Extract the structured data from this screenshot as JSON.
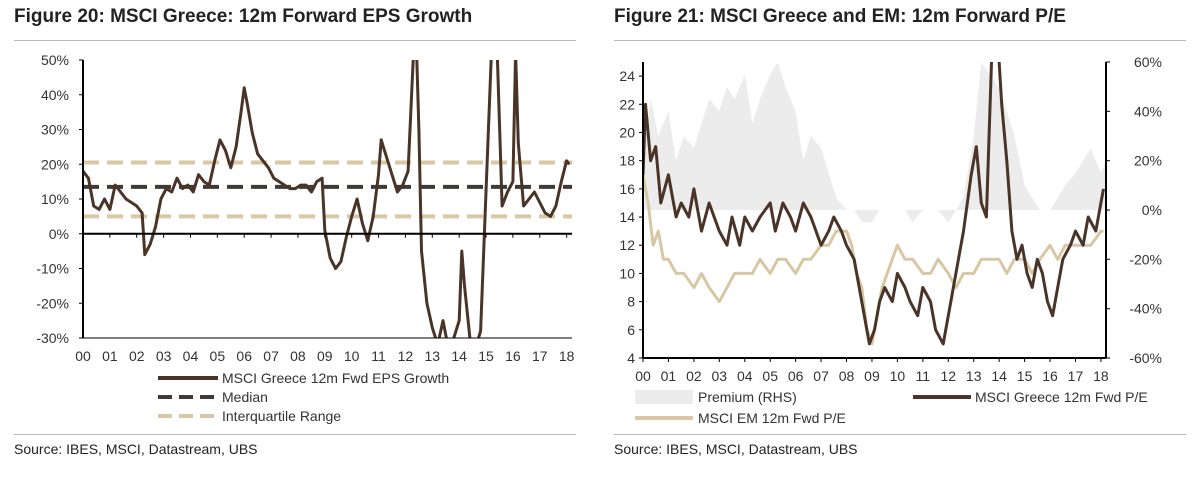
{
  "charts": [
    {
      "title": "Figure 20: MSCI Greece: 12m Forward EPS Growth",
      "source": "Source:  IBES, MSCI, Datastream, UBS"
    },
    {
      "title": "Figure 21: MSCI Greece and EM: 12m Forward P/E",
      "source": "Source:  IBES, MSCI, Datastream, UBS"
    }
  ],
  "colors": {
    "greece": "#4a3428",
    "band": "#d9c8a6",
    "em": "#d7c7a4",
    "premium": "#ececec",
    "axis": "#000000",
    "grid": "#c8c8c8"
  },
  "chart_data": [
    {
      "type": "line",
      "title": "Figure 20: MSCI Greece: 12m Forward EPS Growth",
      "xlabel": "",
      "ylabel": "",
      "x_ticks": [
        "00",
        "01",
        "02",
        "03",
        "04",
        "05",
        "06",
        "07",
        "08",
        "09",
        "10",
        "11",
        "12",
        "13",
        "14",
        "15",
        "16",
        "17",
        "18"
      ],
      "y_ticks": [
        "50%",
        "40%",
        "30%",
        "20%",
        "10%",
        "0%",
        "-10%",
        "-20%",
        "-30%"
      ],
      "ylim": [
        -30,
        50
      ],
      "xlim": [
        0,
        18.2
      ],
      "series": [
        {
          "name": "MSCI Greece 12m Fwd EPS Growth",
          "x": [
            0,
            0.2,
            0.4,
            0.6,
            0.8,
            1.0,
            1.2,
            1.4,
            1.6,
            1.8,
            2.0,
            2.2,
            2.3,
            2.5,
            2.7,
            2.9,
            3.1,
            3.3,
            3.5,
            3.7,
            3.9,
            4.1,
            4.3,
            4.5,
            4.7,
            4.9,
            5.1,
            5.3,
            5.5,
            5.7,
            5.9,
            6.0,
            6.1,
            6.3,
            6.5,
            6.7,
            6.9,
            7.1,
            7.3,
            7.5,
            7.7,
            7.9,
            8.1,
            8.3,
            8.5,
            8.7,
            8.9,
            9.0,
            9.2,
            9.4,
            9.6,
            9.8,
            10.0,
            10.2,
            10.4,
            10.6,
            10.8,
            11.0,
            11.1,
            11.3,
            11.5,
            11.7,
            11.9,
            12.1,
            12.3,
            12.4,
            12.5,
            12.6,
            12.8,
            13.0,
            13.2,
            13.4,
            13.6,
            13.8,
            14.0,
            14.1,
            14.2,
            14.4,
            14.6,
            14.8,
            15.0,
            15.2,
            15.4,
            15.6,
            15.8,
            16.0,
            16.1,
            16.2,
            16.4,
            16.6,
            16.8,
            17.0,
            17.2,
            17.4,
            17.6,
            17.8,
            18.0,
            18.1
          ],
          "values": [
            18,
            16,
            8,
            7,
            10,
            7,
            14,
            12,
            10,
            9,
            8,
            6,
            -6,
            -3,
            2,
            10,
            13,
            12,
            16,
            13,
            14,
            12,
            17,
            15,
            14,
            21,
            27,
            24,
            19,
            25,
            36,
            42,
            38,
            29,
            23,
            21,
            19,
            16,
            15,
            14,
            13,
            13,
            14,
            14,
            12,
            15,
            16,
            1,
            -7,
            -10,
            -8,
            -1,
            5,
            10,
            3,
            -2,
            5,
            17,
            27,
            22,
            17,
            12,
            14,
            18,
            52,
            56,
            30,
            -5,
            -20,
            -27,
            -32,
            -25,
            -33,
            -30,
            -25,
            -5,
            -15,
            -30,
            -33,
            -28,
            12,
            52,
            56,
            8,
            12,
            15,
            52,
            26,
            8,
            10,
            12,
            9,
            6,
            5,
            8,
            15,
            21,
            20
          ]
        },
        {
          "name": "Median",
          "values": [
            13.5
          ]
        },
        {
          "name": "Interquartile Range",
          "values": [
            5,
            20.5
          ]
        }
      ],
      "legend": [
        "MSCI Greece 12m Fwd EPS Growth",
        "Median",
        "Interquartile Range"
      ]
    },
    {
      "type": "line",
      "title": "Figure 21: MSCI Greece and EM: 12m Forward P/E",
      "x_ticks": [
        "00",
        "01",
        "02",
        "03",
        "04",
        "05",
        "06",
        "07",
        "08",
        "09",
        "10",
        "11",
        "12",
        "13",
        "14",
        "15",
        "16",
        "17",
        "18"
      ],
      "y_ticks_left": [
        "24",
        "22",
        "20",
        "18",
        "16",
        "14",
        "12",
        "10",
        "8",
        "6",
        "4"
      ],
      "y_ticks_right": [
        "60%",
        "40%",
        "20%",
        "0%",
        "-20%",
        "-40%",
        "-60%"
      ],
      "ylim_left": [
        4,
        25
      ],
      "ylim_right": [
        -60,
        60
      ],
      "xlim": [
        0,
        18.2
      ],
      "series": [
        {
          "name": "Premium (RHS)",
          "axis": "right",
          "x": [
            0,
            0.3,
            0.6,
            1.0,
            1.3,
            1.6,
            2.0,
            2.3,
            2.6,
            3.0,
            3.3,
            3.6,
            4.0,
            4.3,
            4.6,
            5.0,
            5.3,
            5.6,
            6.0,
            6.3,
            6.6,
            7.0,
            7.3,
            7.6,
            8.0,
            8.3,
            8.6,
            9.0,
            9.3,
            9.6,
            10.0,
            10.3,
            10.6,
            11.0,
            11.3,
            11.6,
            12.0,
            12.3,
            12.6,
            13.0,
            13.3,
            13.6,
            14.0,
            14.3,
            14.6,
            15.0,
            15.3,
            15.6,
            16.0,
            16.3,
            16.6,
            17.0,
            17.3,
            17.6,
            18.0,
            18.2
          ],
          "values": [
            22,
            45,
            30,
            40,
            20,
            30,
            25,
            35,
            45,
            40,
            50,
            45,
            55,
            35,
            45,
            55,
            60,
            50,
            40,
            20,
            30,
            25,
            15,
            5,
            0,
            0,
            -5,
            -5,
            0,
            0,
            0,
            0,
            -5,
            0,
            0,
            0,
            -5,
            0,
            5,
            30,
            60,
            55,
            50,
            40,
            30,
            10,
            5,
            0,
            0,
            5,
            10,
            15,
            20,
            25,
            15,
            20
          ]
        },
        {
          "name": "MSCI Greece 12m Fwd P/E",
          "axis": "left",
          "x": [
            0,
            0.1,
            0.3,
            0.5,
            0.7,
            1.0,
            1.3,
            1.5,
            1.8,
            2.0,
            2.3,
            2.6,
            3.0,
            3.3,
            3.5,
            3.8,
            4.0,
            4.3,
            4.6,
            5.0,
            5.2,
            5.5,
            5.8,
            6.0,
            6.3,
            6.6,
            7.0,
            7.3,
            7.5,
            7.8,
            8.0,
            8.3,
            8.5,
            8.7,
            8.9,
            9.1,
            9.3,
            9.5,
            9.8,
            10.0,
            10.3,
            10.5,
            10.8,
            11.0,
            11.3,
            11.5,
            11.8,
            12.0,
            12.3,
            12.6,
            12.9,
            13.1,
            13.3,
            13.5,
            13.7,
            13.9,
            14.1,
            14.3,
            14.5,
            14.7,
            14.9,
            15.1,
            15.3,
            15.5,
            15.7,
            15.9,
            16.1,
            16.3,
            16.5,
            16.8,
            17.0,
            17.3,
            17.5,
            17.8,
            18.0,
            18.1
          ],
          "values": [
            17,
            22,
            18,
            19,
            15,
            17,
            14,
            15,
            14,
            16,
            13,
            15,
            13,
            12,
            14,
            12,
            14,
            13,
            14,
            15,
            13,
            15,
            14,
            13,
            15,
            14,
            12,
            13,
            14,
            13,
            12,
            11,
            9,
            7,
            5,
            6,
            8,
            9,
            8,
            10,
            9,
            8,
            7,
            9,
            8,
            6,
            5,
            7,
            10,
            13,
            17,
            19,
            15,
            14,
            25,
            28,
            22,
            18,
            13,
            11,
            12,
            10,
            9,
            11,
            10,
            8,
            7,
            9,
            11,
            12,
            13,
            12,
            14,
            13,
            15,
            16
          ]
        },
        {
          "name": "MSCI EM 12m Fwd P/E",
          "axis": "left",
          "x": [
            0,
            0.2,
            0.4,
            0.6,
            0.8,
            1.0,
            1.3,
            1.6,
            2.0,
            2.3,
            2.6,
            3.0,
            3.3,
            3.6,
            4.0,
            4.3,
            4.6,
            5.0,
            5.3,
            5.6,
            6.0,
            6.3,
            6.6,
            7.0,
            7.3,
            7.6,
            8.0,
            8.2,
            8.4,
            8.6,
            8.8,
            9.0,
            9.2,
            9.4,
            9.6,
            9.8,
            10.0,
            10.3,
            10.6,
            11.0,
            11.3,
            11.6,
            12.0,
            12.3,
            12.6,
            13.0,
            13.3,
            13.6,
            14.0,
            14.3,
            14.6,
            15.0,
            15.3,
            15.6,
            16.0,
            16.3,
            16.6,
            17.0,
            17.3,
            17.6,
            18.0,
            18.1
          ],
          "values": [
            17,
            15,
            12,
            13,
            11,
            11,
            10,
            10,
            9,
            10,
            9,
            8,
            9,
            10,
            10,
            10,
            11,
            10,
            11,
            11,
            10,
            11,
            11,
            12,
            12,
            13,
            13,
            12,
            10,
            9,
            6,
            5,
            7,
            9,
            10,
            11,
            12,
            11,
            11,
            10,
            10,
            11,
            10,
            9,
            10,
            10,
            11,
            11,
            11,
            10,
            11,
            11,
            10,
            11,
            12,
            11,
            12,
            12,
            12,
            12,
            13,
            13
          ]
        }
      ],
      "legend": [
        "Premium (RHS)",
        "MSCI Greece 12m Fwd P/E",
        "MSCI EM 12m Fwd P/E"
      ]
    }
  ]
}
